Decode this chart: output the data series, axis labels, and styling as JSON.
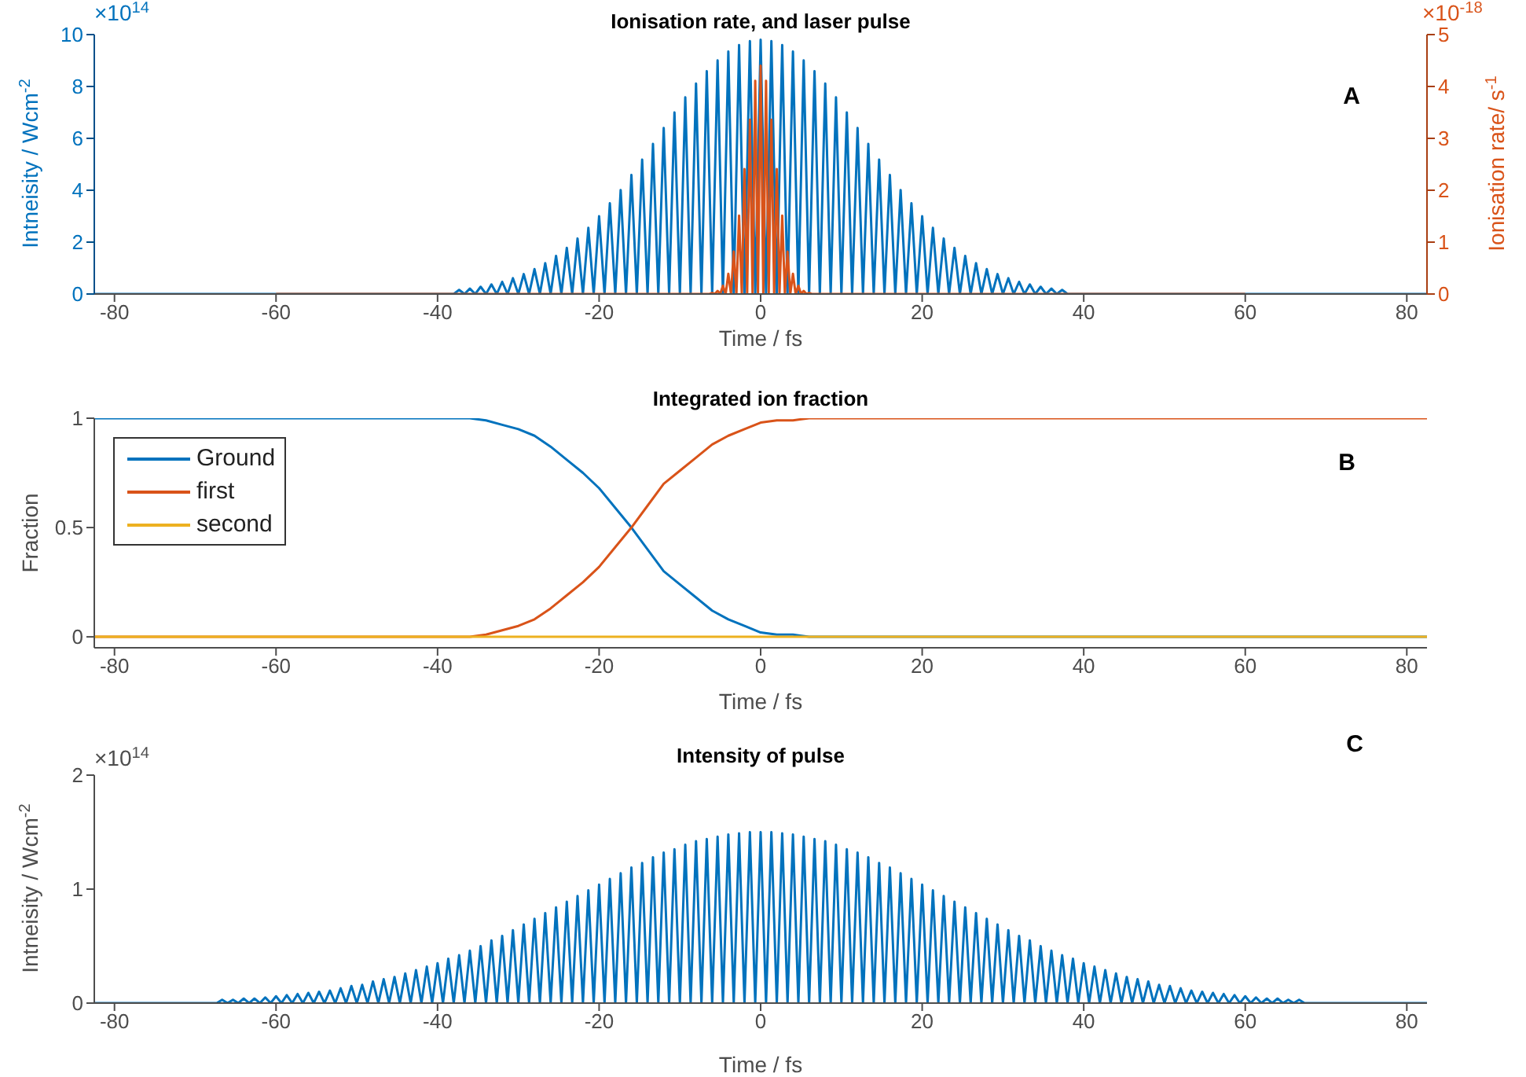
{
  "chart_data": [
    {
      "type": "line",
      "title": "Ionisation rate, and laser pulse",
      "xlabel": "Time / fs",
      "ylabel": "Intneisity / Wcm$^{-2}$",
      "y2label": "Ionisation rate/ s$^{-1}$",
      "xlim": [
        -82.5,
        82.5
      ],
      "xticks": [
        -80,
        -60,
        -40,
        -20,
        0,
        20,
        40,
        60,
        80
      ],
      "ylim": [
        0,
        10
      ],
      "yticks": [
        0,
        2,
        4,
        6,
        8,
        10
      ],
      "y2lim": [
        0,
        5
      ],
      "y2ticks": [
        0,
        1,
        2,
        3,
        4,
        5
      ],
      "annotations": [
        "×10$^{14}$",
        "×10$^{-18}$",
        "A"
      ],
      "series": [
        {
          "color": "#0072bd",
          "x": [
            -82.5,
            -38,
            -37.33,
            -36.67,
            -36,
            -35.33,
            -34.67,
            -34,
            -33.33,
            -32.67,
            -32,
            -31.33,
            -30.67,
            -30,
            -29.33,
            -28.67,
            -28,
            -27.33,
            -26.67,
            -26,
            -25.33,
            -24.67,
            -24,
            -23.33,
            -22.67,
            -22,
            -21.33,
            -20.67,
            -20,
            -19.33,
            -18.67,
            -18,
            -17.33,
            -16.67,
            -16,
            -15.33,
            -14.67,
            -14,
            -13.33,
            -12.67,
            -12,
            -11.33,
            -10.67,
            -10,
            -9.33,
            -8.67,
            -8,
            -7.33,
            -6.67,
            -6,
            -5.33,
            -4.67,
            -4,
            -3.33,
            -2.67,
            -2,
            -1.33,
            -0.67,
            0,
            0.67,
            1.33,
            2,
            2.67,
            3.33,
            4,
            4.67,
            5.33,
            6,
            6.67,
            7.33,
            8,
            8.67,
            9.33,
            10,
            10.67,
            11.33,
            12,
            12.67,
            13.33,
            14,
            14.67,
            15.33,
            16,
            16.67,
            17.33,
            18,
            18.67,
            19.33,
            20,
            20.67,
            21.33,
            22,
            22.67,
            23.33,
            24,
            24.67,
            25.33,
            26,
            26.67,
            27.33,
            28,
            28.67,
            29.33,
            30,
            30.67,
            31.33,
            32,
            32.67,
            33.33,
            34,
            34.67,
            35.33,
            36,
            36.67,
            37.33,
            38,
            82.5
          ],
          "values": [
            0,
            0,
            0.16,
            0,
            0.21,
            0,
            0.28,
            0,
            0.37,
            0,
            0.47,
            0,
            0.61,
            0,
            0.77,
            0,
            0.96,
            0,
            1.19,
            0,
            1.47,
            0,
            1.78,
            0,
            2.14,
            0,
            2.55,
            0,
            3,
            0,
            3.5,
            0,
            4.01,
            0,
            4.59,
            0,
            5.18,
            0,
            5.79,
            0,
            6.4,
            0,
            7,
            0,
            7.58,
            0,
            8.11,
            0,
            8.59,
            0,
            9.01,
            0,
            9.35,
            0,
            9.6,
            0,
            9.75,
            0,
            9.8,
            0,
            9.75,
            0,
            9.6,
            0,
            9.35,
            0,
            9.01,
            0,
            8.59,
            0,
            8.11,
            0,
            7.58,
            0,
            7,
            0,
            6.4,
            0,
            5.79,
            0,
            5.18,
            0,
            4.59,
            0,
            4.01,
            0,
            3.5,
            0,
            3,
            0,
            2.55,
            0,
            2.14,
            0,
            1.78,
            0,
            1.47,
            0,
            1.19,
            0,
            0.96,
            0,
            0.77,
            0,
            0.61,
            0,
            0.47,
            0,
            0.37,
            0,
            0.28,
            0,
            0.21,
            0,
            0.16,
            0,
            0
          ]
        },
        {
          "color": "#d95319",
          "axis": "y2",
          "x": [
            -60,
            -6.33,
            -6,
            -5.67,
            -5.33,
            -5,
            -4.67,
            -4.33,
            -4,
            -3.67,
            -3.33,
            -3,
            -2.67,
            -2.33,
            -2,
            -1.67,
            -1.33,
            -1,
            -0.67,
            -0.33,
            0,
            0.33,
            0.67,
            1,
            1.33,
            1.67,
            2,
            2.33,
            2.67,
            3,
            3.33,
            3.67,
            4,
            4.33,
            4.67,
            5,
            5.33,
            5.67,
            6,
            6.33,
            60
          ],
          "values": [
            0,
            0,
            0.02,
            0,
            0.06,
            0,
            0.16,
            0,
            0.39,
            0,
            0.82,
            0,
            1.51,
            0,
            2.41,
            0,
            3.36,
            0,
            4.11,
            0,
            4.4,
            0,
            4.11,
            0,
            3.36,
            0,
            2.41,
            0,
            1.51,
            0,
            0.82,
            0,
            0.39,
            0,
            0.16,
            0,
            0.06,
            0,
            0.02,
            0,
            0
          ]
        }
      ]
    },
    {
      "type": "line",
      "title": "Integrated ion fraction",
      "xlabel": "Time / fs",
      "ylabel": "Fraction",
      "xlim": [
        -82.5,
        82.5
      ],
      "xticks": [
        -80,
        -60,
        -40,
        -20,
        0,
        20,
        40,
        60,
        80
      ],
      "ylim": [
        -0.05,
        1
      ],
      "yticks": [
        0,
        0.5,
        1
      ],
      "legend": "top left",
      "annotations": [
        "B"
      ],
      "series": [
        {
          "name": "Ground",
          "color": "#0072bd",
          "x": [
            -82.5,
            -40,
            -36,
            -34,
            -32,
            -30,
            -28,
            -26,
            -24,
            -22,
            -20,
            -18,
            -16,
            -14,
            -12,
            -10,
            -8,
            -6,
            -4,
            -2,
            0,
            2,
            4,
            6,
            10,
            82.5
          ],
          "values": [
            1,
            1,
            1,
            0.99,
            0.97,
            0.95,
            0.92,
            0.87,
            0.81,
            0.75,
            0.68,
            0.59,
            0.5,
            0.4,
            0.3,
            0.24,
            0.18,
            0.12,
            0.08,
            0.05,
            0.02,
            0.01,
            0.01,
            0,
            0,
            0
          ]
        },
        {
          "name": "first",
          "color": "#d95319",
          "x": [
            -82.5,
            -40,
            -36,
            -34,
            -32,
            -30,
            -28,
            -26,
            -24,
            -22,
            -20,
            -18,
            -16,
            -14,
            -12,
            -10,
            -8,
            -6,
            -4,
            -2,
            0,
            2,
            4,
            6,
            10,
            82.5
          ],
          "values": [
            0,
            0,
            0,
            0.01,
            0.03,
            0.05,
            0.08,
            0.13,
            0.19,
            0.25,
            0.32,
            0.41,
            0.5,
            0.6,
            0.7,
            0.76,
            0.82,
            0.88,
            0.92,
            0.95,
            0.98,
            0.99,
            0.99,
            1,
            1,
            1
          ]
        },
        {
          "name": "second",
          "color": "#edb120",
          "x": [
            -82.5,
            82.5
          ],
          "values": [
            0,
            0
          ]
        }
      ]
    },
    {
      "type": "line",
      "title": "Intensity of pulse",
      "xlabel": "Time / fs",
      "ylabel": "Intneisity / Wcm$^{-2}$",
      "xlim": [
        -82.5,
        82.5
      ],
      "xticks": [
        -80,
        -60,
        -40,
        -20,
        0,
        20,
        40,
        60,
        80
      ],
      "ylim": [
        0,
        2
      ],
      "yticks": [
        0,
        1,
        2
      ],
      "annotations": [
        "×10$^{14}$",
        "C"
      ],
      "series": [
        {
          "color": "#0072bd",
          "x": [
            -82.5,
            -67.33,
            -66.67,
            -66,
            -65.33,
            -64.67,
            -64,
            -63.33,
            -62.67,
            -62,
            -61.33,
            -60.67,
            -60,
            -59.33,
            -58.67,
            -58,
            -57.33,
            -56.67,
            -56,
            -55.33,
            -54.67,
            -54,
            -53.33,
            -52.67,
            -52,
            -51.33,
            -50.67,
            -50,
            -49.33,
            -48.67,
            -48,
            -47.33,
            -46.67,
            -46,
            -45.33,
            -44.67,
            -44,
            -43.33,
            -42.67,
            -42,
            -41.33,
            -40.67,
            -40,
            -39.33,
            -38.67,
            -38,
            -37.33,
            -36.67,
            -36,
            -35.33,
            -34.67,
            -34,
            -33.33,
            -32.67,
            -32,
            -31.33,
            -30.67,
            -30,
            -29.33,
            -28.67,
            -28,
            -27.33,
            -26.67,
            -26,
            -25.33,
            -24.67,
            -24,
            -23.33,
            -22.67,
            -22,
            -21.33,
            -20.67,
            -20,
            -19.33,
            -18.67,
            -18,
            -17.33,
            -16.67,
            -16,
            -15.33,
            -14.67,
            -14,
            -13.33,
            -12.67,
            -12,
            -11.33,
            -10.67,
            -10,
            -9.33,
            -8.67,
            -8,
            -7.33,
            -6.67,
            -6,
            -5.33,
            -4.67,
            -4,
            -3.33,
            -2.67,
            -2,
            -1.33,
            -0.67,
            0,
            0.67,
            1.33,
            2,
            2.67,
            3.33,
            4,
            4.67,
            5.33,
            6,
            6.67,
            7.33,
            8,
            8.67,
            9.33,
            10,
            10.67,
            11.33,
            12,
            12.67,
            13.33,
            14,
            14.67,
            15.33,
            16,
            16.67,
            17.33,
            18,
            18.67,
            19.33,
            20,
            20.67,
            21.33,
            22,
            22.67,
            23.33,
            24,
            24.67,
            25.33,
            26,
            26.67,
            27.33,
            28,
            28.67,
            29.33,
            30,
            30.67,
            31.33,
            32,
            32.67,
            33.33,
            34,
            34.67,
            35.33,
            36,
            36.67,
            37.33,
            38,
            38.67,
            39.33,
            40,
            40.67,
            41.33,
            42,
            42.67,
            43.33,
            44,
            44.67,
            45.33,
            46,
            46.67,
            47.33,
            48,
            48.67,
            49.33,
            50,
            50.67,
            51.33,
            52,
            52.67,
            53.33,
            54,
            54.67,
            55.33,
            56,
            56.67,
            57.33,
            58,
            58.67,
            59.33,
            60,
            60.67,
            61.33,
            62,
            62.67,
            63.33,
            64,
            64.67,
            65.33,
            66,
            66.67,
            67.33,
            82.5
          ],
          "values": [
            0,
            0,
            0.03,
            0,
            0.03,
            0,
            0.04,
            0,
            0.04,
            0,
            0.05,
            0,
            0.06,
            0,
            0.07,
            0,
            0.08,
            0,
            0.09,
            0,
            0.1,
            0,
            0.11,
            0,
            0.13,
            0,
            0.15,
            0,
            0.16,
            0,
            0.19,
            0,
            0.21,
            0,
            0.23,
            0,
            0.26,
            0,
            0.29,
            0,
            0.32,
            0,
            0.35,
            0,
            0.39,
            0,
            0.42,
            0,
            0.46,
            0,
            0.5,
            0,
            0.55,
            0,
            0.59,
            0,
            0.64,
            0,
            0.69,
            0,
            0.74,
            0,
            0.79,
            0,
            0.84,
            0,
            0.89,
            0,
            0.94,
            0,
            0.99,
            0,
            1.04,
            0,
            1.09,
            0,
            1.14,
            0,
            1.19,
            0,
            1.23,
            0,
            1.28,
            0,
            1.32,
            0,
            1.35,
            0,
            1.39,
            0,
            1.42,
            0,
            1.44,
            0,
            1.46,
            0,
            1.48,
            0,
            1.49,
            0,
            1.5,
            0,
            1.5,
            0,
            1.5,
            0,
            1.49,
            0,
            1.48,
            0,
            1.46,
            0,
            1.44,
            0,
            1.42,
            0,
            1.39,
            0,
            1.35,
            0,
            1.32,
            0,
            1.28,
            0,
            1.23,
            0,
            1.19,
            0,
            1.14,
            0,
            1.09,
            0,
            1.04,
            0,
            0.99,
            0,
            0.94,
            0,
            0.89,
            0,
            0.84,
            0,
            0.79,
            0,
            0.74,
            0,
            0.69,
            0,
            0.64,
            0,
            0.59,
            0,
            0.55,
            0,
            0.5,
            0,
            0.46,
            0,
            0.42,
            0,
            0.39,
            0,
            0.35,
            0,
            0.32,
            0,
            0.29,
            0,
            0.26,
            0,
            0.23,
            0,
            0.21,
            0,
            0.19,
            0,
            0.16,
            0,
            0.15,
            0,
            0.13,
            0,
            0.11,
            0,
            0.1,
            0,
            0.09,
            0,
            0.08,
            0,
            0.07,
            0,
            0.06,
            0,
            0.05,
            0,
            0.04,
            0,
            0.04,
            0,
            0.03,
            0,
            0.03,
            0,
            0
          ]
        }
      ]
    }
  ]
}
